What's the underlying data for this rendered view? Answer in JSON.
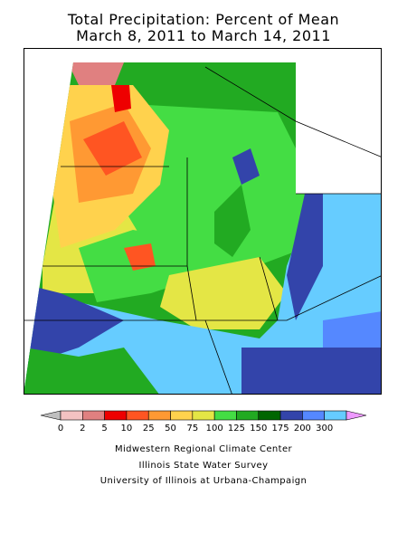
{
  "title_line1": "Total Precipitation: Percent of Mean",
  "title_line2": "March 8, 2011 to March 14, 2011",
  "legend": {
    "labels": [
      "0",
      "2",
      "5",
      "10",
      "25",
      "50",
      "75",
      "100",
      "125",
      "150",
      "175",
      "200",
      "300"
    ],
    "colors": [
      "#bfbfbf",
      "#f4c2c2",
      "#e08080",
      "#ee0000",
      "#ff5522",
      "#ff9933",
      "#ffd24d",
      "#e4e645",
      "#44dd44",
      "#22aa22",
      "#006600",
      "#3344aa",
      "#5588ff",
      "#66ccff",
      "#ee99ff"
    ]
  },
  "credits": {
    "line1": "Midwestern Regional Climate Center",
    "line2": "Illinois State Water Survey",
    "line3": "University of Illinois at Urbana-Champaign"
  }
}
